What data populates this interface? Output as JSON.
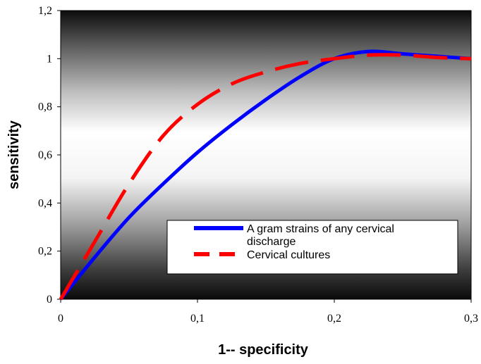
{
  "chart_data": {
    "type": "line",
    "xlabel": "1-- specificity",
    "ylabel": "sensitivity",
    "xlim": [
      0,
      0.3
    ],
    "ylim": [
      0,
      1.2
    ],
    "x_ticks": [
      "0",
      "0,1",
      "0,2",
      "0,3"
    ],
    "y_ticks": [
      "0",
      "0,2",
      "0,4",
      "0,6",
      "0,8",
      "1",
      "1,2"
    ],
    "grid": false,
    "legend_position": "bottom-right",
    "series": [
      {
        "name": "A gram strains of any cervical discharge",
        "color": "#0000ff",
        "line_style": "solid",
        "x": [
          0,
          0.025,
          0.05,
          0.075,
          0.1,
          0.125,
          0.15,
          0.175,
          0.2,
          0.225,
          0.25,
          0.275,
          0.3
        ],
        "y": [
          0,
          0.175,
          0.34,
          0.48,
          0.61,
          0.725,
          0.83,
          0.925,
          1.0,
          1.03,
          1.02,
          1.01,
          1.0
        ]
      },
      {
        "name": "Cervical cultures",
        "color": "#ff0000",
        "line_style": "dashed",
        "x": [
          0,
          0.025,
          0.05,
          0.075,
          0.1,
          0.125,
          0.15,
          0.175,
          0.2,
          0.225,
          0.25,
          0.275,
          0.3
        ],
        "y": [
          0,
          0.24,
          0.48,
          0.68,
          0.81,
          0.895,
          0.945,
          0.98,
          1.0,
          1.015,
          1.015,
          1.005,
          1.0
        ]
      }
    ]
  }
}
